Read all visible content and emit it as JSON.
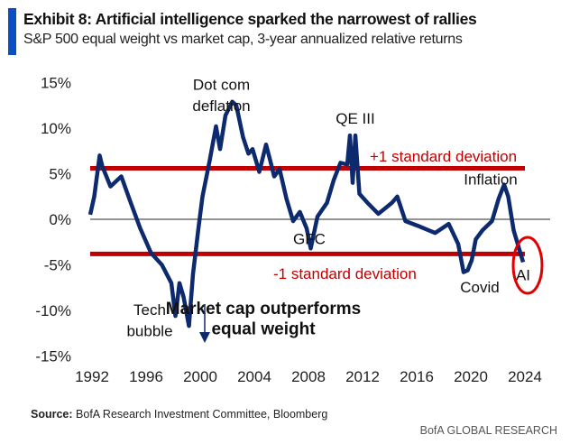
{
  "header": {
    "title": "Exhibit 8: Artificial intelligence sparked the narrowest of rallies",
    "subtitle": "S&P 500 equal weight vs market cap, 3-year annualized relative returns"
  },
  "footer": {
    "source_label": "Source:",
    "source_text": "BofA Research Investment Committee, Bloomberg",
    "brand": "BofA GLOBAL RESEARCH"
  },
  "chart_data": {
    "type": "line",
    "title": "Exhibit 8: Artificial intelligence sparked the narrowest of rallies",
    "xlabel": "",
    "ylabel": "",
    "xlim": [
      1992,
      2024
    ],
    "ylim": [
      -15,
      15
    ],
    "x_ticks": [
      "1992",
      "1996",
      "2000",
      "2004",
      "2008",
      "2012",
      "2016",
      "2020",
      "2024"
    ],
    "y_ticks": [
      "15%",
      "10%",
      "5%",
      "0%",
      "-5%",
      "-10%",
      "-15%"
    ],
    "series": [
      {
        "name": "Equal weight vs market cap relative return (%)",
        "color": "#0d2a6e",
        "x": [
          1992,
          1992.3,
          1992.7,
          1992.9,
          1993.5,
          1994.3,
          1995,
          1995.7,
          1996.5,
          1997.3,
          1998,
          1998.3,
          1998.6,
          1998.9,
          1999.3,
          1999.6,
          2000,
          2000.3,
          2000.8,
          2001.3,
          2001.6,
          2002,
          2002.5,
          2002.8,
          2003.3,
          2003.7,
          2004,
          2004.5,
          2005,
          2005.3,
          2005.6,
          2006,
          2006.5,
          2007,
          2007.5,
          2008,
          2008.3,
          2008.8,
          2009.5,
          2010,
          2010.5,
          2011,
          2011.2,
          2011.4,
          2011.6,
          2011.9,
          2012.5,
          2013.3,
          2013.8,
          2014.3,
          2014.7,
          2015.3,
          2016.2,
          2017,
          2017.5,
          2018.5,
          2019.2,
          2019.6,
          2019.9,
          2020.2,
          2020.5,
          2021,
          2021.7,
          2022.2,
          2022.6,
          2022.9,
          2023.3,
          2023.6,
          2024
        ],
        "y": [
          0.5,
          2.5,
          7,
          5.8,
          3.6,
          4.7,
          1.8,
          -1,
          -3.7,
          -5,
          -7,
          -10.6,
          -7,
          -8.5,
          -11.7,
          -6,
          -1,
          2.5,
          6.2,
          10.2,
          7.7,
          11.4,
          12.9,
          12.5,
          9,
          7.2,
          7.7,
          5.2,
          8.2,
          6.5,
          4.7,
          5.5,
          2.3,
          -0.2,
          0.8,
          -1,
          -3.2,
          0.3,
          1.8,
          4.3,
          6.2,
          6,
          9.2,
          4,
          9.2,
          2.8,
          1.8,
          0.6,
          1.2,
          1.8,
          2.5,
          -0.2,
          -0.7,
          -1.2,
          -1.5,
          -0.5,
          -2.7,
          -5.8,
          -5.6,
          -4.5,
          -2.2,
          -1.2,
          -0.2,
          2.3,
          3.8,
          2.5,
          -1.2,
          -2.7,
          -4.7
        ]
      }
    ],
    "reference_lines": [
      {
        "label": "+1 standard deviation",
        "value": 5.6,
        "color": "#c00000"
      },
      {
        "label": "-1 standard deviation",
        "value": -3.8,
        "color": "#c00000"
      },
      {
        "label": "",
        "value": 0,
        "color": "#555555"
      }
    ],
    "annotations": [
      {
        "text": "Dot com",
        "x": 2001.7,
        "y": 14.2
      },
      {
        "text": "deflation",
        "x": 2001.7,
        "y": 11.9
      },
      {
        "text": "QE III",
        "x": 2011.6,
        "y": 10.5
      },
      {
        "text": "Inflation",
        "x": 2021.6,
        "y": 3.8
      },
      {
        "text": "GFC",
        "x": 2008.2,
        "y": -2.7
      },
      {
        "text": "Covid",
        "x": 2020.8,
        "y": -8
      },
      {
        "text": "AI",
        "x": 2024,
        "y": -6.7
      },
      {
        "text": "Tech",
        "x": 1996.4,
        "y": -10.5
      },
      {
        "text": "bubble",
        "x": 1996.4,
        "y": -12.8
      },
      {
        "text": "Market cap outperforms",
        "x": 2004.8,
        "y": -10.4
      },
      {
        "text": "equal weight",
        "x": 2004.8,
        "y": -12.6
      }
    ]
  }
}
